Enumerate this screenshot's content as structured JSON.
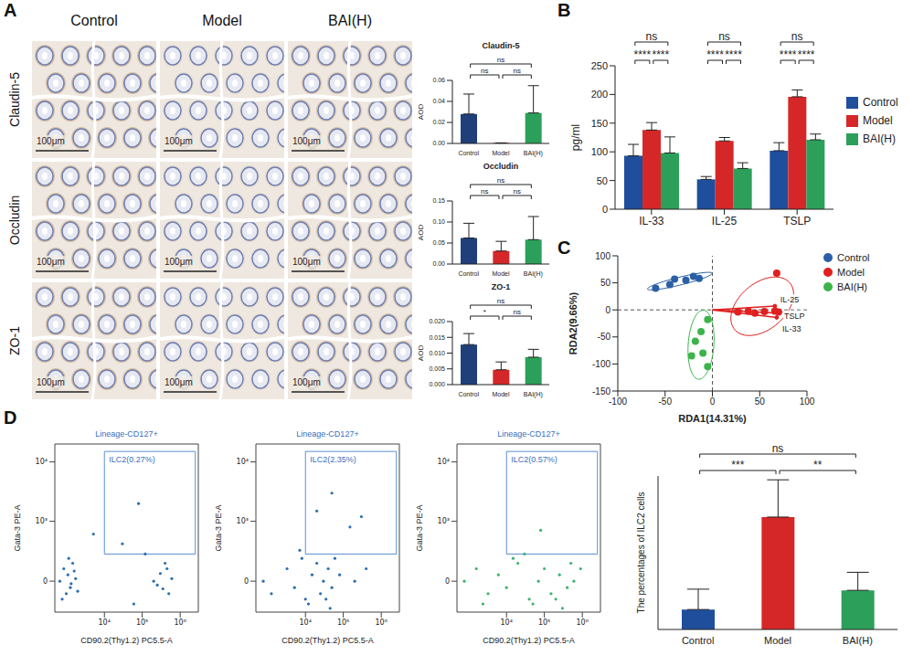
{
  "panel_labels": [
    "A",
    "B",
    "C",
    "D"
  ],
  "histology": {
    "columns": [
      "Control",
      "Model",
      "BAI(H)"
    ],
    "rows": [
      "Claudin-5",
      "Occludin",
      "ZO-1"
    ],
    "scale_bar": "100μm"
  },
  "chart_data": [
    {
      "type": "bar",
      "title": "Claudin-5",
      "categories": [
        "Control",
        "Model",
        "BAI(H)"
      ],
      "values": [
        0.028,
        0.0005,
        0.029
      ],
      "errors": [
        0.019,
        0,
        0.026
      ],
      "colors": [
        "#1f3f7a",
        "#d62728",
        "#2ca05a"
      ],
      "y_label": "AOD",
      "ylim": [
        0,
        0.06
      ],
      "yticks": [
        {
          "value": 0,
          "label": "0.00"
        },
        0.02,
        0.04,
        0.06
      ],
      "comparisons": [
        {
          "groups": [
            "Control",
            "Model"
          ],
          "label": "ns"
        },
        {
          "groups": [
            "Model",
            "BAI(H)"
          ],
          "label": "ns"
        },
        {
          "groups": [
            "Control",
            "BAI(H)"
          ],
          "label": "ns"
        }
      ]
    },
    {
      "type": "bar",
      "title": "Occludin",
      "categories": [
        "Control",
        "Model",
        "BAI(H)"
      ],
      "values": [
        0.062,
        0.031,
        0.058
      ],
      "errors": [
        0.035,
        0.023,
        0.055
      ],
      "colors": [
        "#1f3f7a",
        "#d62728",
        "#2ca05a"
      ],
      "y_label": "AOD",
      "ylim": [
        0,
        0.15
      ],
      "yticks": [
        {
          "value": 0,
          "label": "0.00"
        },
        0.05,
        {
          "value": 0.1,
          "label": "0.10"
        },
        0.15
      ],
      "comparisons": [
        {
          "groups": [
            "Control",
            "Model"
          ],
          "label": "ns"
        },
        {
          "groups": [
            "Model",
            "BAI(H)"
          ],
          "label": "ns"
        },
        {
          "groups": [
            "Control",
            "BAI(H)"
          ],
          "label": "ns"
        }
      ]
    },
    {
      "type": "bar",
      "title": "ZO-1",
      "categories": [
        "Control",
        "Model",
        "BAI(H)"
      ],
      "values": [
        0.0127,
        0.0047,
        0.0087
      ],
      "errors": [
        0.0035,
        0.0025,
        0.0025
      ],
      "colors": [
        "#1f3f7a",
        "#d62728",
        "#2ca05a"
      ],
      "y_label": "AOD",
      "ylim": [
        0,
        0.02
      ],
      "yticks": [
        {
          "value": 0,
          "label": "0.000"
        },
        0.005,
        {
          "value": 0.01,
          "label": "0.010"
        },
        0.015,
        {
          "value": 0.02,
          "label": "0.020"
        }
      ],
      "comparisons": [
        {
          "groups": [
            "Control",
            "Model"
          ],
          "label": "*"
        },
        {
          "groups": [
            "Model",
            "BAI(H)"
          ],
          "label": "ns"
        },
        {
          "groups": [
            "Control",
            "BAI(H)"
          ],
          "label": "ns"
        }
      ]
    },
    {
      "type": "bar",
      "categories": [
        "IL-33",
        "IL-25",
        "TSLP"
      ],
      "series": [
        {
          "name": "Control",
          "color": "#1f4e9c",
          "values": [
            93,
            52,
            102
          ],
          "errors": [
            20,
            5,
            14
          ]
        },
        {
          "name": "Model",
          "color": "#d62728",
          "values": [
            138,
            119,
            196
          ],
          "errors": [
            13,
            6,
            12
          ]
        },
        {
          "name": "BAI(H)",
          "color": "#2ca05a",
          "values": [
            98,
            71,
            121
          ],
          "errors": [
            28,
            10,
            10
          ]
        }
      ],
      "y_label": "pg/ml",
      "ylim": [
        0,
        250
      ],
      "yticks": [
        0,
        50,
        100,
        150,
        200,
        250
      ],
      "legend": "right",
      "comparisons": [
        {
          "category": "IL-33",
          "groups": [
            "Control",
            "Model"
          ],
          "label": "****"
        },
        {
          "category": "IL-33",
          "groups": [
            "Model",
            "BAI(H)"
          ],
          "label": "****"
        },
        {
          "category": "IL-33",
          "groups": [
            "Control",
            "BAI(H)"
          ],
          "label": "ns"
        },
        {
          "category": "IL-25",
          "groups": [
            "Control",
            "Model"
          ],
          "label": "****"
        },
        {
          "category": "IL-25",
          "groups": [
            "Model",
            "BAI(H)"
          ],
          "label": "****"
        },
        {
          "category": "IL-25",
          "groups": [
            "Control",
            "BAI(H)"
          ],
          "label": "ns"
        },
        {
          "category": "TSLP",
          "groups": [
            "Control",
            "Model"
          ],
          "label": "****"
        },
        {
          "category": "TSLP",
          "groups": [
            "Model",
            "BAI(H)"
          ],
          "label": "****"
        },
        {
          "category": "TSLP",
          "groups": [
            "Control",
            "BAI(H)"
          ],
          "label": "ns"
        }
      ]
    },
    {
      "type": "scatter",
      "x_label": "RDA1(14.31%)",
      "y_label": "RDA2(9.66%)",
      "xlim": [
        -100,
        100
      ],
      "xticks": [
        -100,
        -50,
        0,
        50,
        100
      ],
      "ylim": [
        -150,
        100
      ],
      "yticks": [
        -150,
        -100,
        -50,
        0,
        50,
        100
      ],
      "legend": "right",
      "series": [
        {
          "name": "Control",
          "color": "#2b5fa6",
          "x": [
            -60,
            -45,
            -40,
            -28,
            -20,
            -14
          ],
          "y": [
            40,
            47,
            57,
            55,
            62,
            58
          ]
        },
        {
          "name": "Model",
          "color": "#e02020",
          "x": [
            68,
            27,
            38,
            45,
            55,
            66,
            70
          ],
          "y": [
            68,
            -4,
            -2,
            -6,
            -3,
            -2,
            -4
          ]
        },
        {
          "name": "BAI(H)",
          "color": "#3cb44b",
          "x": [
            -5,
            -12,
            -18,
            -10,
            -22,
            -5
          ],
          "y": [
            -18,
            -40,
            -58,
            -80,
            -85,
            -105
          ]
        }
      ],
      "arrows": [
        {
          "label": "IL-25",
          "x": 66,
          "y": 7
        },
        {
          "label": "TSLP",
          "x": 70,
          "y": -6
        },
        {
          "label": "IL-33",
          "x": 68,
          "y": -14
        }
      ]
    },
    {
      "type": "scatter",
      "title": "Lineage-CD127+",
      "x_label": "CD90.2(Thy1.2) PC5.5-A",
      "y_label": "Gata-3 PE-A",
      "log": true,
      "xlim": [
        -1500,
        3000000
      ],
      "xticks": [
        {
          "value": 10000,
          "label": "10⁴"
        },
        {
          "value": 100000,
          "label": "10⁵"
        },
        {
          "value": 1000000,
          "label": "10⁶"
        }
      ],
      "ylim": [
        -300,
        20000
      ],
      "yticks": [
        0,
        {
          "value": 1000,
          "label": "10³"
        },
        {
          "value": 10000,
          "label": "10⁴"
        }
      ],
      "gate": {
        "label": "ILC2(0.27%)",
        "x": [
          10000,
          2500000
        ],
        "y": [
          250,
          15000
        ]
      },
      "series": [
        {
          "color": "#2a6fb0",
          "x": [
            -800,
            -300,
            0,
            200,
            500,
            800,
            1200,
            -500,
            300,
            600,
            1000,
            1500,
            200000,
            300000,
            350000,
            450000,
            500000,
            600000,
            250000,
            400000,
            30000,
            60000,
            5000,
            120000,
            80000
          ],
          "y": [
            0,
            100,
            -100,
            50,
            -50,
            150,
            20,
            -150,
            200,
            -20,
            80,
            -80,
            0,
            60,
            -60,
            100,
            -100,
            20,
            -30,
            150,
            400,
            -200,
            600,
            250,
            2000
          ]
        }
      ]
    },
    {
      "type": "scatter",
      "title": "Lineage-CD127+",
      "x_label": "CD90.2(Thy1.2) PC5.5-A",
      "y_label": "Gata-3 PE-A",
      "log": true,
      "xlim": [
        -1500,
        3000000
      ],
      "xticks": [
        {
          "value": 10000,
          "label": "10⁴"
        },
        {
          "value": 100000,
          "label": "10⁵"
        },
        {
          "value": 1000000,
          "label": "10⁶"
        }
      ],
      "ylim": [
        -300,
        20000
      ],
      "yticks": [
        0,
        {
          "value": 1000,
          "label": "10³"
        },
        {
          "value": 10000,
          "label": "10⁴"
        }
      ],
      "gate": {
        "label": "ILC2(2.35%)",
        "x": [
          10000,
          2500000
        ],
        "y": [
          250,
          15000
        ]
      },
      "series": [
        {
          "color": "#2a6fb0",
          "x": [
            -500,
            500,
            3000,
            5000,
            8000,
            10000,
            15000,
            20000,
            25000,
            30000,
            40000,
            50000,
            60000,
            80000,
            12000,
            35000,
            200000,
            400000,
            20000,
            50000,
            150000,
            300000,
            7000,
            45000
          ],
          "y": [
            0,
            -100,
            100,
            -50,
            200,
            -150,
            50,
            150,
            -100,
            0,
            100,
            -50,
            200,
            50,
            -200,
            -150,
            0,
            100,
            1500,
            3000,
            800,
            1200,
            300,
            -250
          ]
        }
      ]
    },
    {
      "type": "scatter",
      "title": "Lineage-CD127+",
      "x_label": "CD90.2(Thy1.2) PC5.5-A",
      "y_label": "Gata-3 PE-A",
      "log": true,
      "xlim": [
        -1500,
        3000000
      ],
      "xticks": [
        {
          "value": 10000,
          "label": "10⁴"
        },
        {
          "value": 100000,
          "label": "10⁵"
        },
        {
          "value": 1000000,
          "label": "10⁶"
        }
      ],
      "ylim": [
        -300,
        20000
      ],
      "yticks": [
        0,
        {
          "value": 1000,
          "label": "10³"
        },
        {
          "value": 10000,
          "label": "10⁴"
        }
      ],
      "gate": {
        "label": "ILC2(0.57%)",
        "x": [
          10000,
          2500000
        ],
        "y": [
          250,
          15000
        ]
      },
      "series": [
        {
          "color": "#3cb371",
          "x": [
            -500,
            1000,
            3000,
            6000,
            10000,
            20000,
            40000,
            70000,
            100000,
            150000,
            250000,
            400000,
            600000,
            900000,
            15000,
            50000,
            200000,
            500000,
            2000,
            30000,
            80000,
            300000
          ],
          "y": [
            0,
            100,
            -100,
            50,
            -50,
            150,
            -150,
            0,
            100,
            -100,
            50,
            -50,
            0,
            100,
            200,
            -200,
            -150,
            150,
            -200,
            250,
            700,
            -250
          ]
        }
      ]
    },
    {
      "type": "bar",
      "categories": [
        "Control",
        "Model",
        "BAI(H)"
      ],
      "values": [
        0.52,
        2.93,
        1.02
      ],
      "errors": [
        0.53,
        0.97,
        0.47
      ],
      "colors": [
        "#1f4e9c",
        "#d62728",
        "#2ca05a"
      ],
      "y_label": "The percentages of ILC2 cells",
      "ylim": [
        0,
        4
      ],
      "tick_labels": "x",
      "comparisons": [
        {
          "groups": [
            "Control",
            "Model"
          ],
          "label": "***"
        },
        {
          "groups": [
            "Model",
            "BAI(H)"
          ],
          "label": "**"
        },
        {
          "groups": [
            "Control",
            "BAI(H)"
          ],
          "label": "ns"
        }
      ]
    }
  ]
}
